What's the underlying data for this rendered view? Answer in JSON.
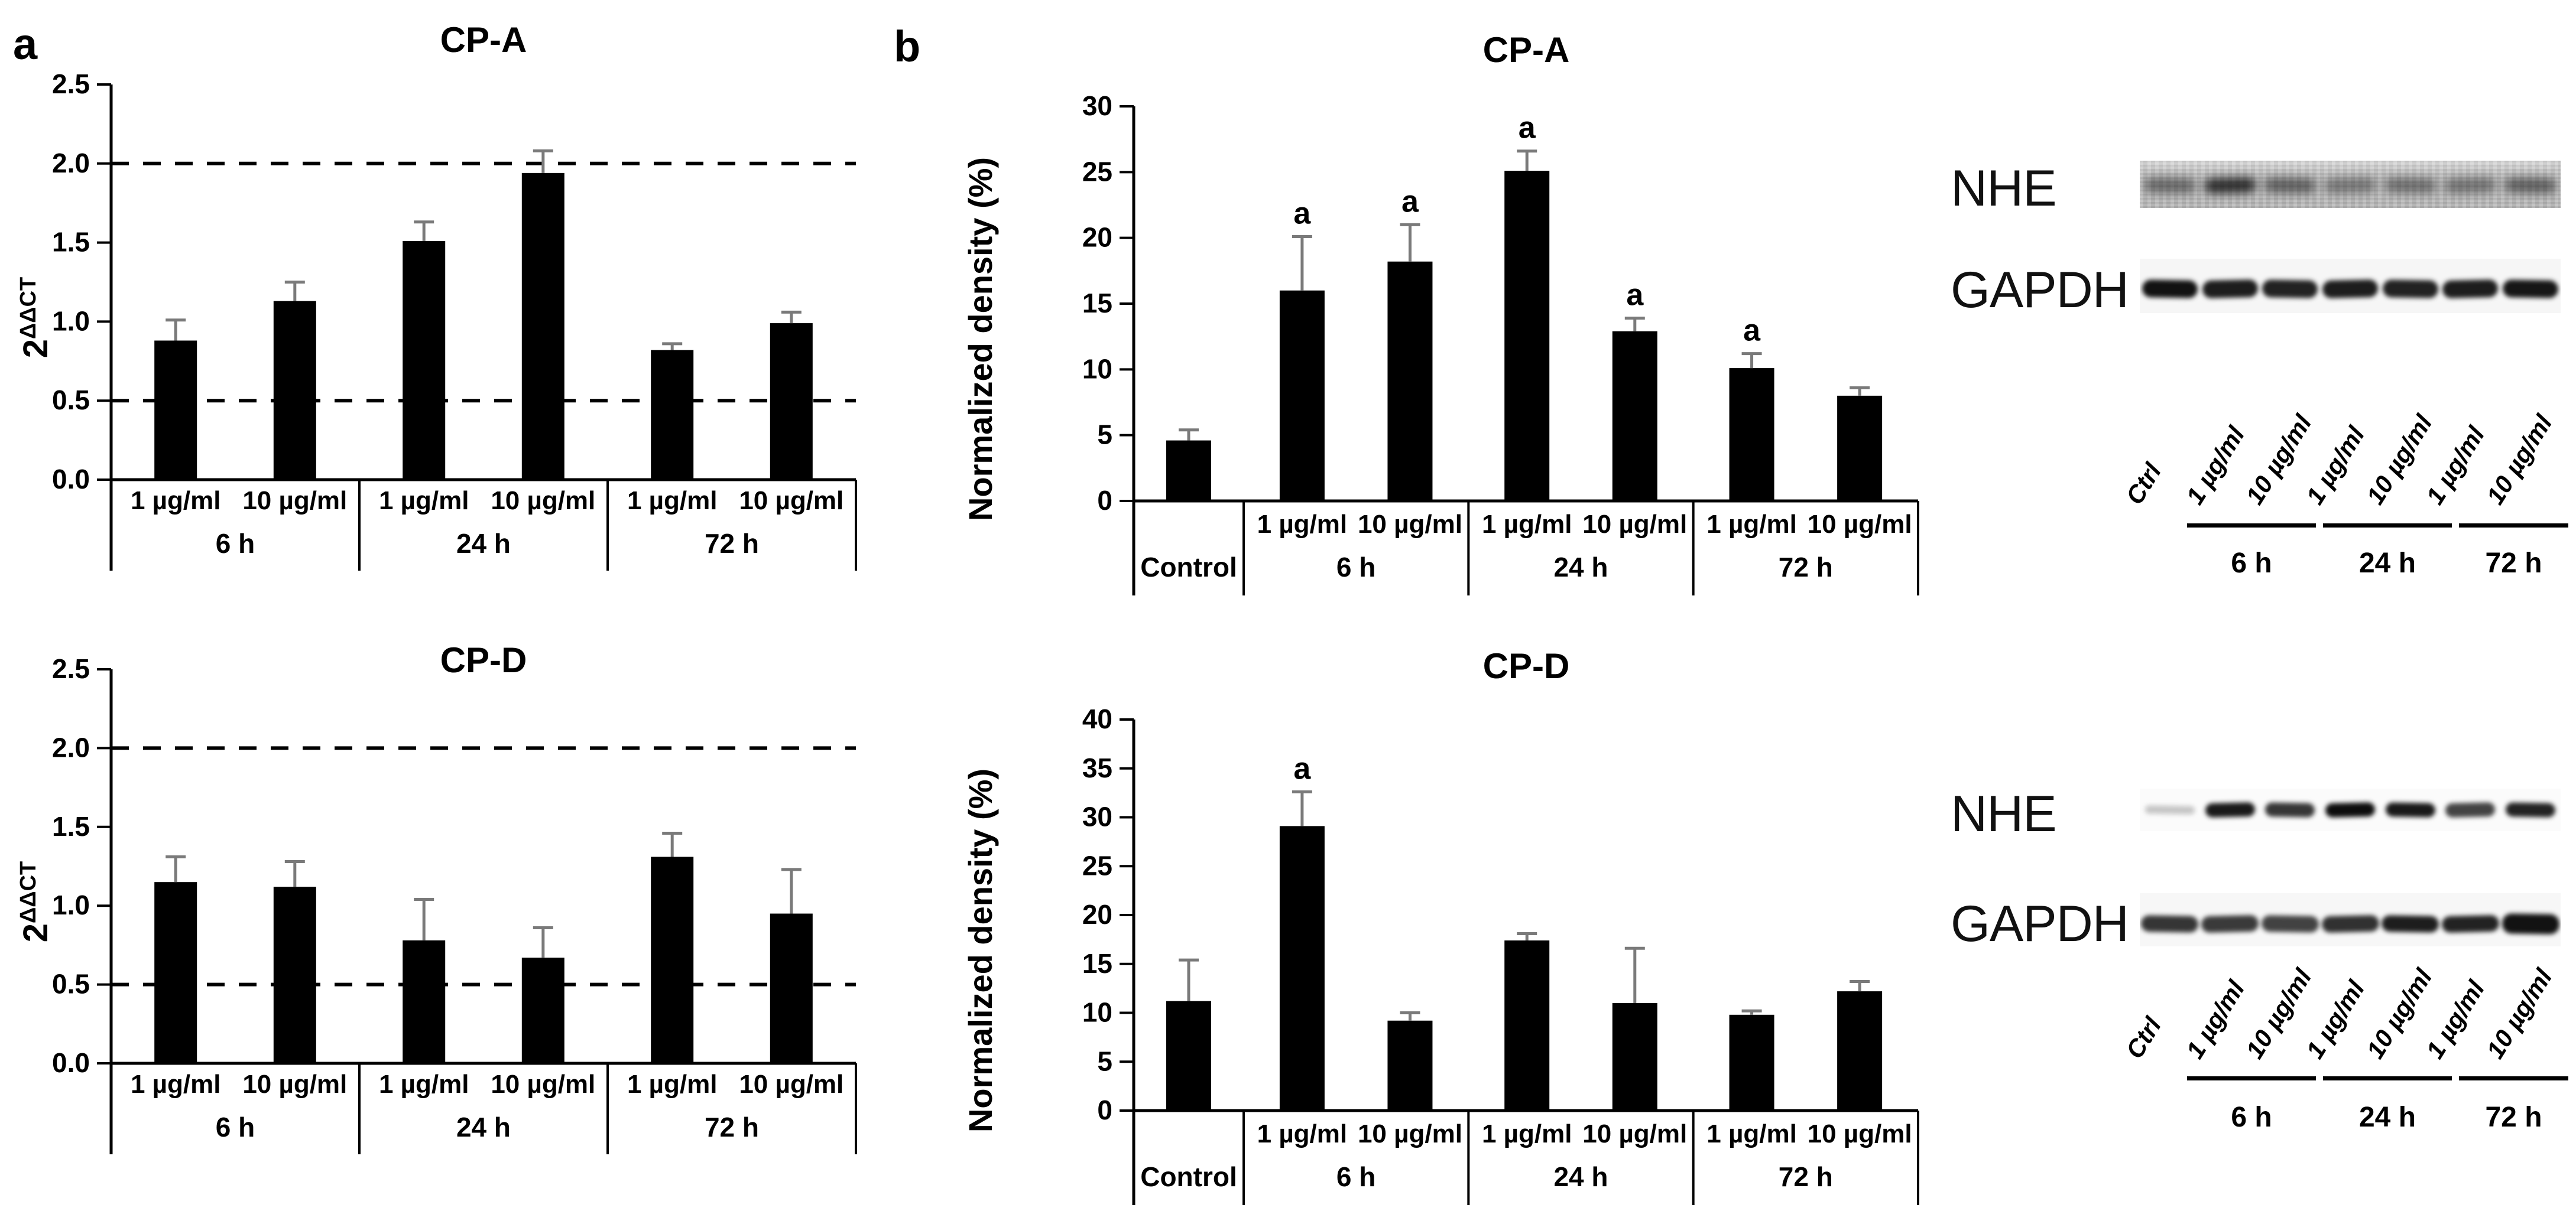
{
  "figure": {
    "panel_a_label": "a",
    "panel_b_label": "b",
    "background": "#ffffff",
    "bar_color": "#000000",
    "error_bar_color": "#7a7a7a"
  },
  "chart_data": [
    {
      "id": "mrna-cpa",
      "panel": "a",
      "type": "bar",
      "title": "CP-A",
      "ylabel": "2^ΔΔCT",
      "ylabel_base": "2",
      "ylabel_superscript": "ΔΔCT",
      "ylim": [
        0,
        2.5
      ],
      "ytick_step": 0.5,
      "ytick_decimals": 1,
      "reference_lines": [
        0.5,
        2.0
      ],
      "grid": false,
      "legend": "none",
      "groups": [
        {
          "label": "6 h",
          "bars": [
            {
              "label": "1 µg/ml",
              "value": 0.88,
              "error": 0.13
            },
            {
              "label": "10 µg/ml",
              "value": 1.13,
              "error": 0.12
            }
          ]
        },
        {
          "label": "24 h",
          "bars": [
            {
              "label": "1 µg/ml",
              "value": 1.51,
              "error": 0.12
            },
            {
              "label": "10 µg/ml",
              "value": 1.94,
              "error": 0.14
            }
          ]
        },
        {
          "label": "72 h",
          "bars": [
            {
              "label": "1 µg/ml",
              "value": 0.82,
              "error": 0.04
            },
            {
              "label": "10 µg/ml",
              "value": 0.99,
              "error": 0.07
            }
          ]
        }
      ]
    },
    {
      "id": "mrna-cpd",
      "panel": "a",
      "type": "bar",
      "title": "CP-D",
      "ylabel": "2^ΔΔCT",
      "ylabel_base": "2",
      "ylabel_superscript": "ΔΔCT",
      "ylim": [
        0,
        2.5
      ],
      "ytick_step": 0.5,
      "ytick_decimals": 1,
      "reference_lines": [
        0.5,
        2.0
      ],
      "grid": false,
      "legend": "none",
      "groups": [
        {
          "label": "6 h",
          "bars": [
            {
              "label": "1 µg/ml",
              "value": 1.15,
              "error": 0.16
            },
            {
              "label": "10 µg/ml",
              "value": 1.12,
              "error": 0.16
            }
          ]
        },
        {
          "label": "24 h",
          "bars": [
            {
              "label": "1 µg/ml",
              "value": 0.78,
              "error": 0.26
            },
            {
              "label": "10 µg/ml",
              "value": 0.67,
              "error": 0.19
            }
          ]
        },
        {
          "label": "72 h",
          "bars": [
            {
              "label": "1 µg/ml",
              "value": 1.31,
              "error": 0.15
            },
            {
              "label": "10 µg/ml",
              "value": 0.95,
              "error": 0.28
            }
          ]
        }
      ]
    },
    {
      "id": "density-cpa",
      "panel": "b",
      "type": "bar",
      "title": "CP-A",
      "ylabel": "Normalized density (%)",
      "ylim": [
        0,
        30
      ],
      "ytick_step": 5,
      "ytick_decimals": 0,
      "reference_lines": [],
      "grid": false,
      "legend": "none",
      "groups": [
        {
          "label": "Control",
          "bars": [
            {
              "label": "",
              "value": 4.6,
              "error": 0.8
            }
          ]
        },
        {
          "label": "6 h",
          "bars": [
            {
              "label": "1 µg/ml",
              "value": 16.0,
              "error": 4.1,
              "sig": "a"
            },
            {
              "label": "10 µg/ml",
              "value": 18.2,
              "error": 2.8,
              "sig": "a"
            }
          ]
        },
        {
          "label": "24 h",
          "bars": [
            {
              "label": "1 µg/ml",
              "value": 25.1,
              "error": 1.5,
              "sig": "a"
            },
            {
              "label": "10 µg/ml",
              "value": 12.9,
              "error": 1.0,
              "sig": "a"
            }
          ]
        },
        {
          "label": "72 h",
          "bars": [
            {
              "label": "1 µg/ml",
              "value": 10.1,
              "error": 1.1,
              "sig": "a"
            },
            {
              "label": "10 µg/ml",
              "value": 8.0,
              "error": 0.6
            }
          ]
        }
      ]
    },
    {
      "id": "density-cpd",
      "panel": "b",
      "type": "bar",
      "title": "CP-D",
      "ylabel": "Normalized density (%)",
      "ylim": [
        0,
        40
      ],
      "ytick_step": 5,
      "ytick_decimals": 0,
      "reference_lines": [],
      "grid": false,
      "legend": "none",
      "groups": [
        {
          "label": "Control",
          "bars": [
            {
              "label": "",
              "value": 11.2,
              "error": 4.2
            }
          ]
        },
        {
          "label": "6 h",
          "bars": [
            {
              "label": "1 µg/ml",
              "value": 29.1,
              "error": 3.5,
              "sig": "a"
            },
            {
              "label": "10 µg/ml",
              "value": 9.2,
              "error": 0.8
            }
          ]
        },
        {
          "label": "24 h",
          "bars": [
            {
              "label": "1 µg/ml",
              "value": 17.4,
              "error": 0.7
            },
            {
              "label": "10 µg/ml",
              "value": 11.0,
              "error": 5.6
            }
          ]
        },
        {
          "label": "72 h",
          "bars": [
            {
              "label": "1 µg/ml",
              "value": 9.8,
              "error": 0.4
            },
            {
              "label": "10 µg/ml",
              "value": 12.2,
              "error": 1.0
            }
          ]
        }
      ]
    }
  ],
  "blots": [
    {
      "id": "blot-cpa",
      "rows": [
        {
          "label": "NHE",
          "background": "#cbcbcb",
          "noisy": true,
          "band_intensities": [
            0.45,
            0.78,
            0.5,
            0.38,
            0.42,
            0.4,
            0.5
          ]
        },
        {
          "label": "GAPDH",
          "background": "#f6f6f6",
          "noisy": false,
          "band_intensities": [
            0.95,
            0.9,
            0.88,
            0.9,
            0.88,
            0.9,
            0.93
          ]
        }
      ],
      "lane_labels": [
        "Ctrl",
        "1 µg/ml",
        "10 µg/ml",
        "1 µg/ml",
        "10 µg/ml",
        "1 µg/ml",
        "10 µg/ml"
      ],
      "time_groups": [
        "6 h",
        "24 h",
        "72 h"
      ]
    },
    {
      "id": "blot-cpd",
      "rows": [
        {
          "label": "NHE",
          "background": "#fbfbfb",
          "noisy": false,
          "band_intensities": [
            0.22,
            0.92,
            0.8,
            0.97,
            0.92,
            0.75,
            0.88
          ]
        },
        {
          "label": "GAPDH",
          "background": "#f7f7f7",
          "noisy": false,
          "band_intensities": [
            0.8,
            0.78,
            0.75,
            0.82,
            0.9,
            0.88,
            0.95
          ]
        }
      ],
      "lane_labels": [
        "Ctrl",
        "1 µg/ml",
        "10 µg/ml",
        "1 µg/ml",
        "10 µg/ml",
        "1 µg/ml",
        "10 µg/ml"
      ],
      "time_groups": [
        "6 h",
        "24 h",
        "72 h"
      ]
    }
  ]
}
